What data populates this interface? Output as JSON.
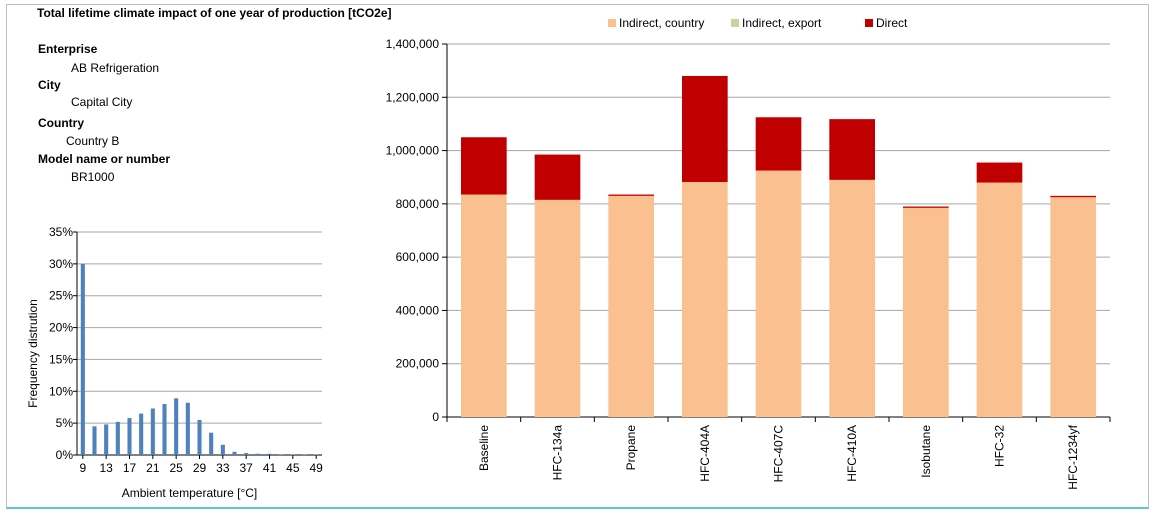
{
  "title": "Total lifetime climate impact of one year of production [tCO2e]",
  "info": [
    {
      "label": "Enterprise",
      "value": "AB Refrigeration"
    },
    {
      "label": "City",
      "value": "Capital City"
    },
    {
      "label": "Country",
      "value": "Country B"
    },
    {
      "label": "Model name or number",
      "value": "BR1000"
    }
  ],
  "colors": {
    "indirect_country": "#fac090",
    "indirect_export": "#c3d69b",
    "direct": "#c00000",
    "histogram": "#4f81bd",
    "grid": "#a6a6a6"
  },
  "chart_data": [
    {
      "type": "bar",
      "stacked": true,
      "title": "Total lifetime climate impact of one year of production [tCO2e]",
      "categories": [
        "Baseline",
        "HFC-134a",
        "Propane",
        "HFC-404A",
        "HFC-407C",
        "HFC-410A",
        "Isobutane",
        "HFC-32",
        "HFC-1234yf"
      ],
      "series": [
        {
          "name": "Indirect, country",
          "values": [
            835000,
            815000,
            830000,
            882000,
            925000,
            890000,
            785000,
            880000,
            825000
          ]
        },
        {
          "name": "Indirect, export",
          "values": [
            0,
            0,
            0,
            0,
            0,
            0,
            0,
            0,
            0
          ]
        },
        {
          "name": "Direct",
          "values": [
            215000,
            170000,
            5000,
            398000,
            200000,
            228000,
            5000,
            75000,
            5000
          ]
        }
      ],
      "ylim": [
        0,
        1400000
      ],
      "yticks": [
        "0",
        "200,000",
        "400,000",
        "600,000",
        "800,000",
        "1,000,000",
        "1,200,000",
        "1,400,000"
      ],
      "grid": true,
      "legend": "top"
    },
    {
      "type": "bar",
      "x": [
        9,
        11,
        13,
        15,
        17,
        19,
        21,
        23,
        25,
        27,
        29,
        31,
        33,
        35,
        37,
        39,
        41,
        43,
        45,
        47,
        49
      ],
      "values": [
        30.0,
        4.5,
        4.8,
        5.2,
        5.8,
        6.5,
        7.3,
        8.0,
        8.9,
        8.2,
        5.5,
        3.5,
        1.6,
        0.5,
        0.3,
        0.2,
        0.2,
        0.1,
        0.1,
        0.1,
        0.1
      ],
      "xticks": [
        "9",
        "13",
        "17",
        "21",
        "25",
        "29",
        "33",
        "37",
        "41",
        "45",
        "49"
      ],
      "yticks": [
        "0%",
        "5%",
        "10%",
        "15%",
        "20%",
        "25%",
        "30%",
        "35%"
      ],
      "ylim": [
        0,
        35
      ],
      "xlabel": "Ambient temperature [°C]",
      "ylabel": "Frequency distrution",
      "grid": true
    }
  ]
}
